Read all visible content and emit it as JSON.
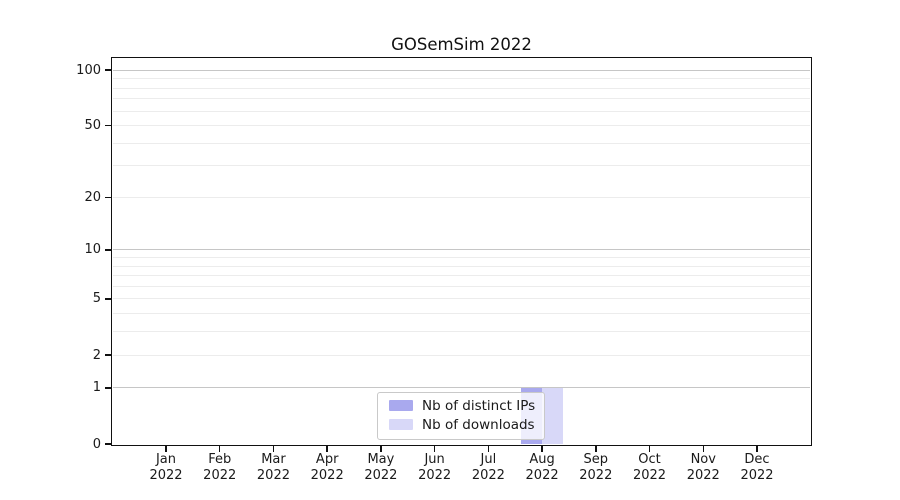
{
  "chart_data": {
    "type": "bar",
    "title": "GOSemSim 2022",
    "categories": [
      "Jan",
      "Feb",
      "Mar",
      "Apr",
      "May",
      "Jun",
      "Jul",
      "Aug",
      "Sep",
      "Oct",
      "Nov",
      "Dec"
    ],
    "category_sublabel": "2022",
    "series": [
      {
        "name": "Nb of distinct IPs",
        "color": "#a9a9ee",
        "values": [
          0,
          0,
          0,
          0,
          0,
          0,
          0,
          1,
          0,
          0,
          0,
          0
        ]
      },
      {
        "name": "Nb of downloads",
        "color": "#d8d8f8",
        "values": [
          0,
          0,
          0,
          0,
          0,
          0,
          0,
          1,
          0,
          0,
          0,
          0
        ]
      }
    ],
    "xlabel": "",
    "ylabel": "",
    "yscale": "log1p",
    "ylim": [
      0,
      115
    ],
    "yticks": [
      0,
      1,
      2,
      5,
      10,
      20,
      50,
      100
    ],
    "major_gridlines": [
      1,
      10,
      100
    ],
    "minor_gridlines": [
      2,
      3,
      4,
      5,
      6,
      7,
      8,
      9,
      20,
      30,
      40,
      50,
      60,
      70,
      80,
      90
    ],
    "grid": "on",
    "legend_position": "inside-bottom-center",
    "colors": {
      "major_grid": "#c6c6c6",
      "minor_grid": "#ececec",
      "axis": "#111111",
      "text": "#1a1a1a",
      "legend_border": "#c9c9c9",
      "legend_bg": "rgba(255,255,255,0.8)",
      "background": "#ffffff"
    }
  }
}
